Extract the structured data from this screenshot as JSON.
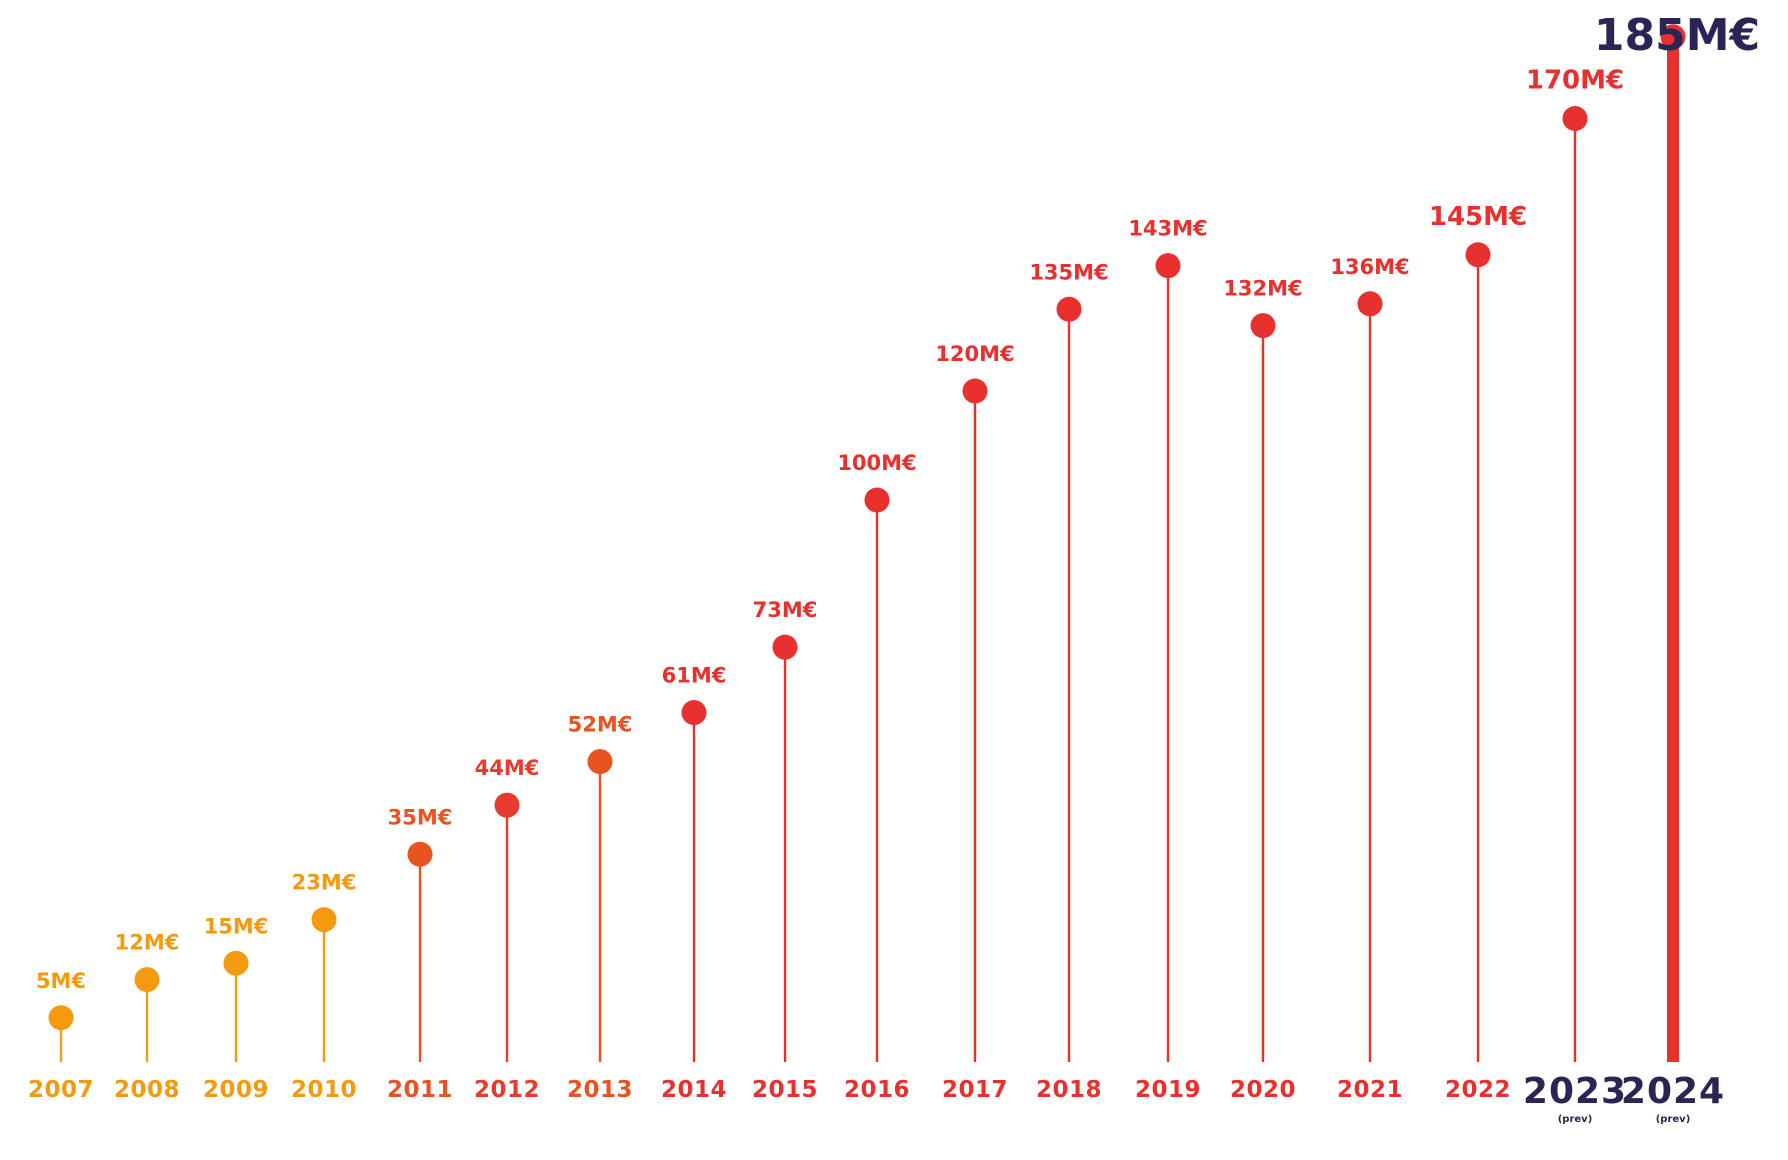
{
  "chart_data": {
    "type": "lollipop",
    "title": "",
    "xlabel": "",
    "ylabel": "",
    "ylim": [
      0,
      190
    ],
    "grid": false,
    "legend": "none",
    "unit": "M€",
    "points": [
      {
        "year": "2007",
        "value": 5,
        "label": "5M€",
        "color": "#F39A0E"
      },
      {
        "year": "2008",
        "value": 12,
        "label": "12M€",
        "color": "#F39A0E"
      },
      {
        "year": "2009",
        "value": 15,
        "label": "15M€",
        "color": "#F39A0E"
      },
      {
        "year": "2010",
        "value": 23,
        "label": "23M€",
        "color": "#F39A0E"
      },
      {
        "year": "2011",
        "value": 35,
        "label": "35M€",
        "color": "#E85320"
      },
      {
        "year": "2012",
        "value": 44,
        "label": "44M€",
        "color": "#E83A2E"
      },
      {
        "year": "2013",
        "value": 52,
        "label": "52M€",
        "color": "#E85320"
      },
      {
        "year": "2014",
        "value": 61,
        "label": "61M€",
        "color": "#E8312F"
      },
      {
        "year": "2015",
        "value": 73,
        "label": "73M€",
        "color": "#E8312F"
      },
      {
        "year": "2016",
        "value": 100,
        "label": "100M€",
        "color": "#E8312F"
      },
      {
        "year": "2017",
        "value": 120,
        "label": "120M€",
        "color": "#E8312F"
      },
      {
        "year": "2018",
        "value": 135,
        "label": "135M€",
        "color": "#E8312F"
      },
      {
        "year": "2019",
        "value": 143,
        "label": "143M€",
        "color": "#E8312F"
      },
      {
        "year": "2020",
        "value": 132,
        "label": "132M€",
        "color": "#E8312F"
      },
      {
        "year": "2021",
        "value": 136,
        "label": "136M€",
        "color": "#E8312F"
      },
      {
        "year": "2022",
        "value": 145,
        "label": "145M€",
        "color": "#E8312F"
      },
      {
        "year": "2023",
        "value": 170,
        "label": "170M€",
        "color": "#E8312F",
        "year_color": "#2B2555",
        "note": "(prev)"
      },
      {
        "year": "2024",
        "value": 185,
        "label": "185M€",
        "color": "#E8312F",
        "year_color": "#2B2555",
        "label_color": "#2B2555",
        "note": "(prev)",
        "highlight": true
      }
    ]
  }
}
